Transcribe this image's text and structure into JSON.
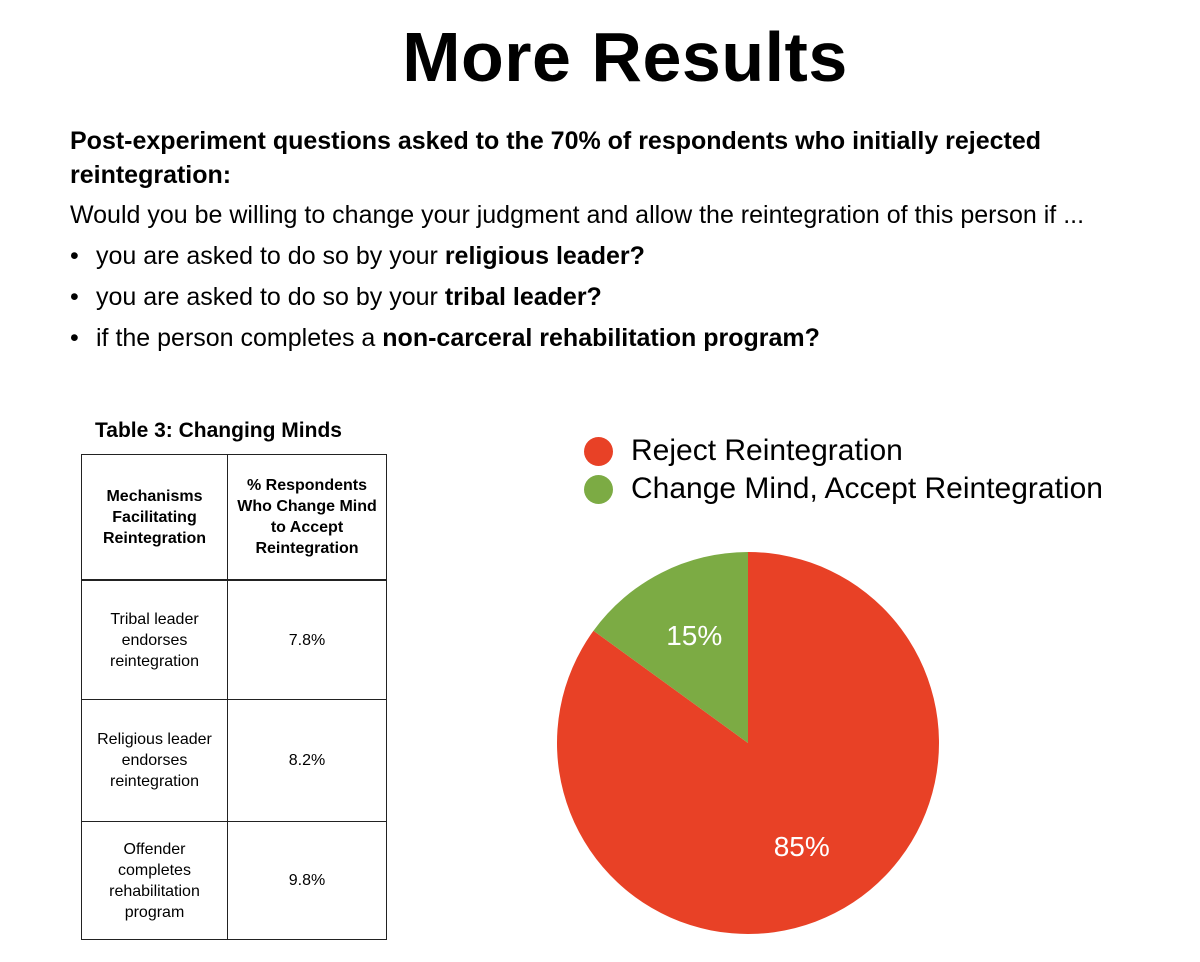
{
  "title": "More Results",
  "intro": {
    "lead": "Post-experiment questions asked to the 70% of respondents who initially rejected reintegration:",
    "question": "Would you be willing to change your judgment and allow the reintegration of this person if ...",
    "bullets": [
      {
        "pre": "you are asked to do so by your ",
        "bold": "religious leader?"
      },
      {
        "pre": "you are asked to do so by your ",
        "bold": "tribal leader?"
      },
      {
        "pre": "if the person completes a ",
        "bold": "non-carceral rehabilitation program?"
      }
    ],
    "bullet_glyph": "•"
  },
  "table": {
    "caption": "Table 3: Changing Minds",
    "headers": [
      "Mechanisms Facilitating Reintegration",
      "% Respondents Who Change Mind to Accept Reintegration"
    ],
    "rows": [
      {
        "mechanism": "Tribal leader endorses reintegration",
        "percent": "7.8%"
      },
      {
        "mechanism": "Religious leader endorses reintegration",
        "percent": "8.2%"
      },
      {
        "mechanism": "Offender completes rehabilitation program",
        "percent": "9.8%"
      }
    ]
  },
  "chart_data": {
    "type": "pie",
    "title": "",
    "legend_position": "top",
    "slices": [
      {
        "label": "Reject Reintegration",
        "value": 85,
        "display": "85%",
        "color": "#e84126"
      },
      {
        "label": "Change Mind, Accept Reintegration",
        "value": 15,
        "display": "15%",
        "color": "#7cab44"
      }
    ],
    "start_angle_deg": 0,
    "direction": "clockwise"
  }
}
